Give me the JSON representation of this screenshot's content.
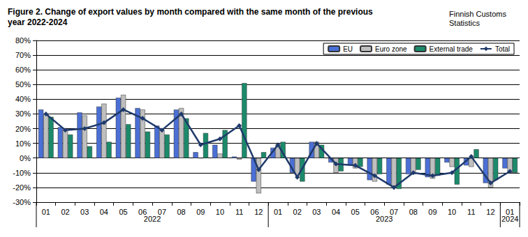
{
  "chart_data": {
    "type": "bar",
    "title": "Figure 2. Change of export values by month compared with the same month of the previous year 2022-2024",
    "subtitle": "Finnish Customs Statistics",
    "categories": [
      "01",
      "02",
      "03",
      "04",
      "05",
      "06",
      "07",
      "08",
      "09",
      "10",
      "11",
      "12",
      "01",
      "02",
      "03",
      "04",
      "05",
      "06",
      "07",
      "08",
      "09",
      "10",
      "11",
      "12",
      "01"
    ],
    "category_groups": [
      {
        "label": "2022",
        "count": 12
      },
      {
        "label": "2023",
        "count": 12
      },
      {
        "label": "2024",
        "count": 1
      }
    ],
    "series": [
      {
        "name": "EU",
        "type": "bar",
        "color": "#4a6fd6",
        "values": [
          33,
          21,
          31,
          35,
          41,
          34,
          22,
          33,
          4,
          9,
          1,
          -16,
          7,
          -10,
          11,
          -3,
          -5,
          -15,
          -18,
          -11,
          -13,
          -3,
          -5,
          -17,
          -7
        ]
      },
      {
        "name": "Euro zone",
        "type": "bar",
        "color": "#bfbfbf",
        "values": [
          30,
          19,
          29,
          37,
          43,
          33,
          19,
          34,
          0,
          3,
          -1,
          -24,
          9,
          -11,
          11,
          -10,
          -7,
          -16,
          -20,
          -11,
          -14,
          -6,
          -6,
          -20,
          -10
        ]
      },
      {
        "name": "External trade",
        "type": "bar",
        "color": "#1b8a6b",
        "values": [
          28,
          16,
          8,
          11,
          23,
          18,
          16,
          27,
          17,
          19,
          51,
          4,
          11,
          -16,
          9,
          -9,
          -6,
          -11,
          -21,
          -8,
          -12,
          -18,
          6,
          -15,
          -10
        ]
      },
      {
        "name": "Total",
        "type": "line",
        "color": "#1f3a6b",
        "marker": "diamond",
        "line_style": "solid",
        "values": [
          30,
          19,
          20,
          24,
          33,
          27,
          19,
          30,
          9,
          13,
          22,
          -8,
          9,
          -13,
          10,
          -4,
          -5,
          -12,
          -20,
          -10,
          -12,
          -10,
          1,
          -17,
          -9
        ]
      }
    ],
    "ylim": [
      -30,
      80
    ],
    "yticks": [
      {
        "value": -30,
        "label": "-30%"
      },
      {
        "value": -20,
        "label": "-20%"
      },
      {
        "value": -10,
        "label": "-10%"
      },
      {
        "value": 0,
        "label": "0%"
      },
      {
        "value": 10,
        "label": "10%"
      },
      {
        "value": 20,
        "label": "20%"
      },
      {
        "value": 30,
        "label": "30%"
      },
      {
        "value": 40,
        "label": "40%"
      },
      {
        "value": 50,
        "label": "50%"
      },
      {
        "value": 60,
        "label": "60%"
      },
      {
        "value": 70,
        "label": "70%"
      },
      {
        "value": 80,
        "label": "80%"
      }
    ],
    "grid": true,
    "legend": "top-right"
  }
}
